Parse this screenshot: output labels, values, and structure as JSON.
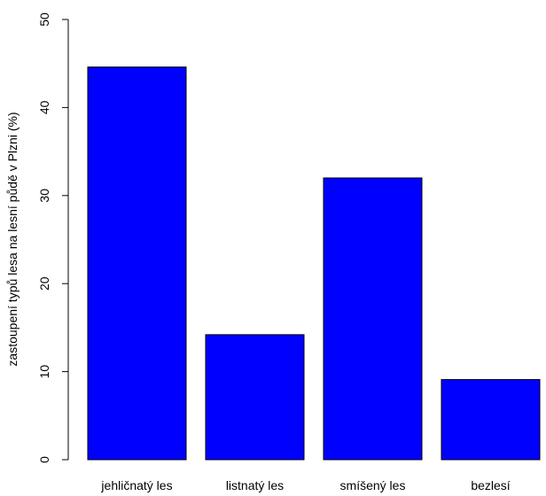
{
  "chart_data": {
    "type": "bar",
    "title": "",
    "xlabel": "",
    "ylabel": "zastoupení typů lesa na lesní půdě v Plzni (%)",
    "categories": [
      "jehličnatý les",
      "listnatý les",
      "smíšený les",
      "bezlesí"
    ],
    "values": [
      44.6,
      14.2,
      32.0,
      9.1
    ],
    "ylim": [
      0,
      50
    ],
    "yticks": [
      "0",
      "10",
      "20",
      "30",
      "40",
      "50"
    ],
    "bar_color": "#0000ff",
    "bar_border_color": "#000000",
    "grid": false,
    "legend": "none"
  }
}
